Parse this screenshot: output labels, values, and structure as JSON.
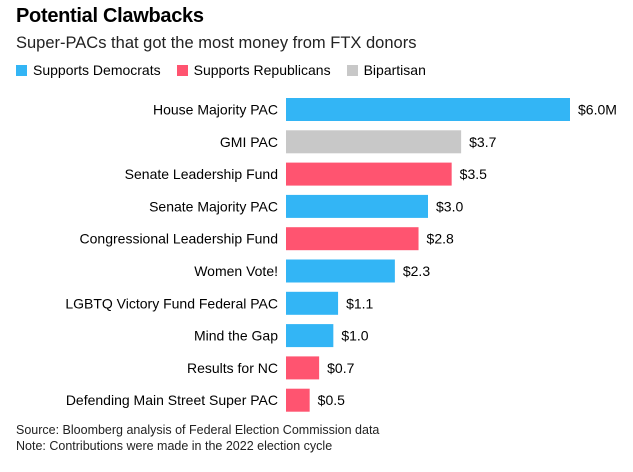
{
  "chart_data": {
    "type": "bar",
    "orientation": "horizontal",
    "title": "Potential Clawbacks",
    "subtitle": "Super-PACs that got the most money from FTX donors",
    "legend": [
      {
        "name": "Supports Democrats",
        "color": "#33b5f5"
      },
      {
        "name": "Supports Republicans",
        "color": "#ff5470"
      },
      {
        "name": "Bipartisan",
        "color": "#c8c8c8"
      }
    ],
    "legend_position": "top-left",
    "grid": false,
    "xlim": [
      0,
      6.0
    ],
    "categories": [
      "House Majority PAC",
      "GMI PAC",
      "Senate Leadership Fund",
      "Senate Majority PAC",
      "Congressional Leadership Fund",
      "Women Vote!",
      "LGBTQ Victory Fund Federal PAC",
      "Mind the Gap",
      "Results for NC",
      "Defending Main Street Super PAC"
    ],
    "values": [
      6.0,
      3.7,
      3.5,
      3.0,
      2.8,
      2.3,
      1.1,
      1.0,
      0.7,
      0.5
    ],
    "affiliation": [
      "Supports Democrats",
      "Bipartisan",
      "Supports Republicans",
      "Supports Democrats",
      "Supports Republicans",
      "Supports Democrats",
      "Supports Democrats",
      "Supports Democrats",
      "Supports Republicans",
      "Supports Republicans"
    ],
    "value_labels": [
      "$6.0M",
      "$3.7",
      "$3.5",
      "$3.0",
      "$2.8",
      "$2.3",
      "$1.1",
      "$1.0",
      "$0.7",
      "$0.5"
    ]
  },
  "footer": {
    "source": "Source: Bloomberg analysis of Federal Election Commission data",
    "note": "Note: Contributions were made in the 2022 election cycle"
  }
}
